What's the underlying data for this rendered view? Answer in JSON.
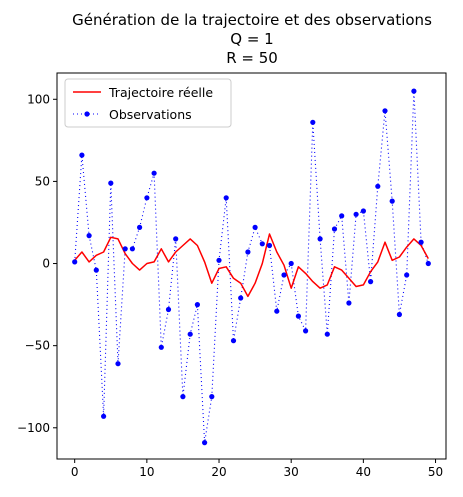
{
  "chart_data": {
    "type": "line",
    "title_lines": [
      "Génération de la trajectoire et des observations",
      "Q = 1",
      "R = 50"
    ],
    "xlabel": "",
    "ylabel": "",
    "xlim": [
      -2.45,
      51.45
    ],
    "ylim": [
      -119,
      116
    ],
    "x_ticks": [
      0,
      10,
      20,
      30,
      40,
      50
    ],
    "y_ticks": [
      -100,
      -50,
      0,
      50,
      100
    ],
    "grid": false,
    "legend_position": "top-left",
    "x": [
      0,
      1,
      2,
      3,
      4,
      5,
      6,
      7,
      8,
      9,
      10,
      11,
      12,
      13,
      14,
      15,
      16,
      17,
      18,
      19,
      20,
      21,
      22,
      23,
      24,
      25,
      26,
      27,
      28,
      29,
      30,
      31,
      32,
      33,
      34,
      35,
      36,
      37,
      38,
      39,
      40,
      41,
      42,
      43,
      44,
      45,
      46,
      47,
      48,
      49
    ],
    "series": [
      {
        "name": "Trajectoire réelle",
        "color": "#ff0000",
        "style": "solid-line",
        "values": [
          2,
          7,
          1,
          5,
          7,
          16,
          15,
          6,
          0,
          -4,
          0,
          1,
          9,
          1,
          7,
          11,
          15,
          11,
          1,
          -12,
          -3,
          -2,
          -9,
          -12,
          -20,
          -12,
          0,
          18,
          7,
          -1,
          -15,
          -2,
          -6,
          -11,
          -15,
          -13,
          -2,
          -4,
          -9,
          -14,
          -13,
          -5,
          1,
          13,
          2,
          4,
          10,
          15,
          11,
          3
        ]
      },
      {
        "name": "Observations",
        "color": "#0000ff",
        "style": "dotted-line-with-markers",
        "values": [
          1,
          66,
          17,
          -4,
          -93,
          49,
          -61,
          9,
          9,
          22,
          40,
          55,
          -51,
          -28,
          15,
          -81,
          -43,
          -25,
          -109,
          -81,
          2,
          40,
          -47,
          -21,
          7,
          22,
          12,
          11,
          -29,
          -7,
          0,
          -32,
          -41,
          86,
          15,
          -43,
          21,
          29,
          -24,
          30,
          32,
          -11,
          47,
          93,
          38,
          -31,
          -7,
          105,
          13,
          0
        ]
      }
    ]
  }
}
